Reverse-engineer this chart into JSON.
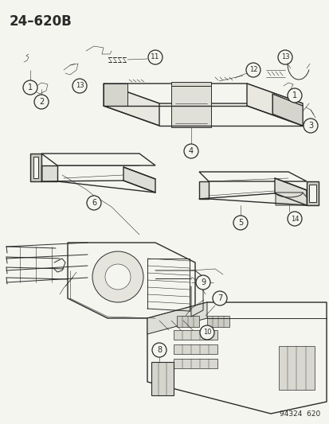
{
  "title": "24–620B",
  "watermark": "94324  620",
  "bg_color": "#f5f5f0",
  "fig_width": 4.14,
  "fig_height": 5.33,
  "dpi": 100,
  "title_fontsize": 12,
  "title_weight": "bold",
  "line_color": "#2a2a2a",
  "label_fontsize": 7,
  "circle_lw": 0.9
}
